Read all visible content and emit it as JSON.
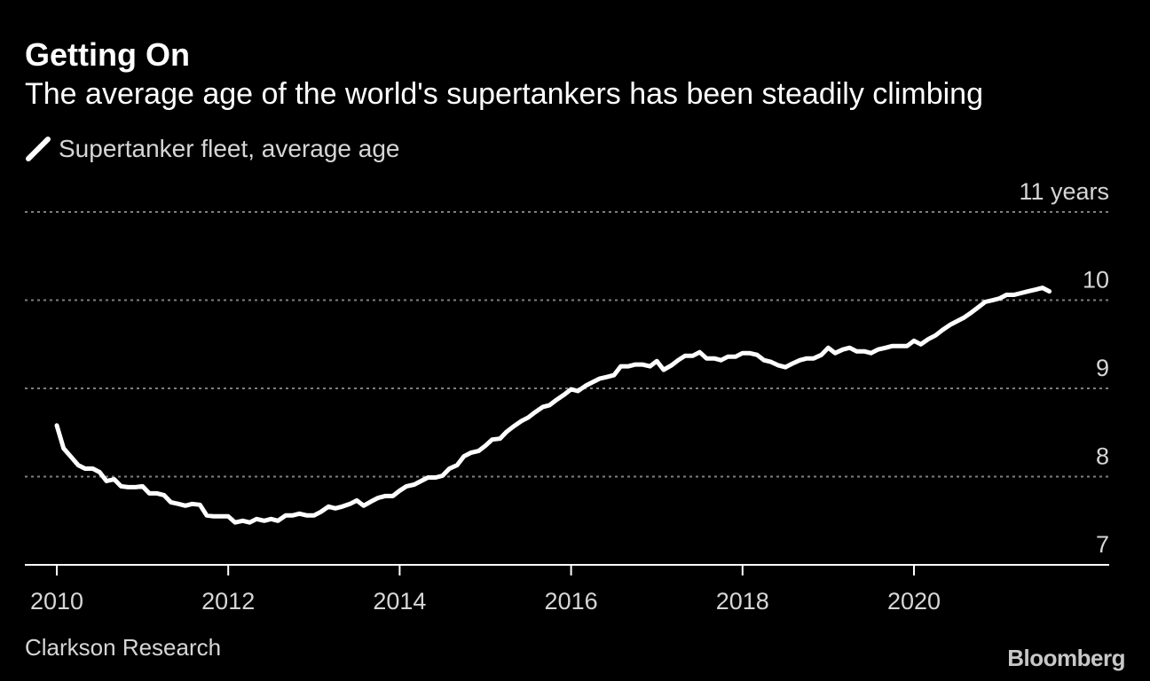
{
  "header": {
    "title": "Getting On",
    "subtitle": "The average age of the world's supertankers has been steadily climbing"
  },
  "footer": {
    "source": "Clarkson Research",
    "brand": "Bloomberg"
  },
  "colors": {
    "background": "#000000",
    "line": "#ffffff",
    "grid": "#7f7f7f",
    "text": "#ffffff",
    "muted_text": "#d6d6d6"
  },
  "chart_data": {
    "type": "line",
    "title": "Getting On",
    "subtitle": "The average age of the world's supertankers has been steadily climbing",
    "xlim": [
      2010,
      2022.3
    ],
    "ylim": [
      7,
      11
    ],
    "x_ticks": [
      2010,
      2012,
      2014,
      2016,
      2018,
      2020
    ],
    "x_tick_labels": [
      "2010",
      "2012",
      "2014",
      "2016",
      "2018",
      "2020"
    ],
    "y_ticks": [
      7,
      8,
      9,
      10,
      11
    ],
    "y_tick_labels": [
      "7",
      "8",
      "9",
      "10",
      "11 years"
    ],
    "grid": true,
    "legend": "top-left",
    "series": [
      {
        "name": "Supertanker fleet, average age",
        "x": [
          2010.0,
          2010.08,
          2010.17,
          2010.25,
          2010.33,
          2010.42,
          2010.5,
          2010.58,
          2010.67,
          2010.75,
          2010.83,
          2010.92,
          2011.0,
          2011.08,
          2011.17,
          2011.25,
          2011.33,
          2011.42,
          2011.5,
          2011.58,
          2011.67,
          2011.75,
          2011.83,
          2011.92,
          2012.0,
          2012.08,
          2012.17,
          2012.25,
          2012.33,
          2012.42,
          2012.5,
          2012.58,
          2012.67,
          2012.75,
          2012.83,
          2012.92,
          2013.0,
          2013.08,
          2013.17,
          2013.25,
          2013.33,
          2013.42,
          2013.5,
          2013.58,
          2013.67,
          2013.75,
          2013.83,
          2013.92,
          2014.0,
          2014.08,
          2014.17,
          2014.25,
          2014.33,
          2014.42,
          2014.5,
          2014.58,
          2014.67,
          2014.75,
          2014.83,
          2014.92,
          2015.0,
          2015.08,
          2015.17,
          2015.25,
          2015.33,
          2015.42,
          2015.5,
          2015.58,
          2015.67,
          2015.75,
          2015.83,
          2015.92,
          2016.0,
          2016.08,
          2016.17,
          2016.25,
          2016.33,
          2016.42,
          2016.5,
          2016.58,
          2016.67,
          2016.75,
          2016.83,
          2016.92,
          2017.0,
          2017.08,
          2017.17,
          2017.25,
          2017.33,
          2017.42,
          2017.5,
          2017.58,
          2017.67,
          2017.75,
          2017.83,
          2017.92,
          2018.0,
          2018.08,
          2018.17,
          2018.25,
          2018.33,
          2018.42,
          2018.5,
          2018.58,
          2018.67,
          2018.75,
          2018.83,
          2018.92,
          2019.0,
          2019.08,
          2019.17,
          2019.25,
          2019.33,
          2019.42,
          2019.5,
          2019.58,
          2019.67,
          2019.75,
          2019.83,
          2019.92,
          2020.0,
          2020.08,
          2020.17,
          2020.25,
          2020.33,
          2020.42,
          2020.5,
          2020.58,
          2020.67,
          2020.75,
          2020.83,
          2020.92,
          2021.0,
          2021.08,
          2021.17,
          2021.25,
          2021.33,
          2021.42,
          2021.5,
          2021.58
        ],
        "values": [
          8.58,
          8.32,
          8.22,
          8.13,
          8.09,
          8.09,
          8.05,
          7.95,
          7.97,
          7.89,
          7.88,
          7.88,
          7.89,
          7.81,
          7.81,
          7.79,
          7.71,
          7.69,
          7.67,
          7.69,
          7.68,
          7.56,
          7.55,
          7.55,
          7.55,
          7.48,
          7.5,
          7.48,
          7.52,
          7.5,
          7.52,
          7.5,
          7.56,
          7.56,
          7.58,
          7.56,
          7.56,
          7.6,
          7.66,
          7.64,
          7.66,
          7.69,
          7.73,
          7.67,
          7.72,
          7.76,
          7.78,
          7.78,
          7.84,
          7.89,
          7.91,
          7.95,
          7.99,
          7.99,
          8.01,
          8.09,
          8.13,
          8.23,
          8.27,
          8.29,
          8.35,
          8.42,
          8.43,
          8.51,
          8.57,
          8.63,
          8.67,
          8.73,
          8.79,
          8.81,
          8.87,
          8.93,
          8.99,
          8.97,
          9.03,
          9.07,
          9.11,
          9.13,
          9.15,
          9.25,
          9.25,
          9.27,
          9.27,
          9.25,
          9.31,
          9.21,
          9.26,
          9.32,
          9.37,
          9.37,
          9.41,
          9.34,
          9.34,
          9.32,
          9.36,
          9.36,
          9.4,
          9.4,
          9.38,
          9.32,
          9.3,
          9.26,
          9.24,
          9.28,
          9.32,
          9.34,
          9.34,
          9.38,
          9.46,
          9.4,
          9.44,
          9.46,
          9.42,
          9.42,
          9.4,
          9.44,
          9.46,
          9.48,
          9.48,
          9.48,
          9.54,
          9.5,
          9.56,
          9.6,
          9.66,
          9.72,
          9.76,
          9.8,
          9.86,
          9.92,
          9.98,
          10.0,
          10.02,
          10.06,
          10.06,
          10.08,
          10.1,
          10.12,
          10.14,
          10.1
        ]
      }
    ]
  }
}
